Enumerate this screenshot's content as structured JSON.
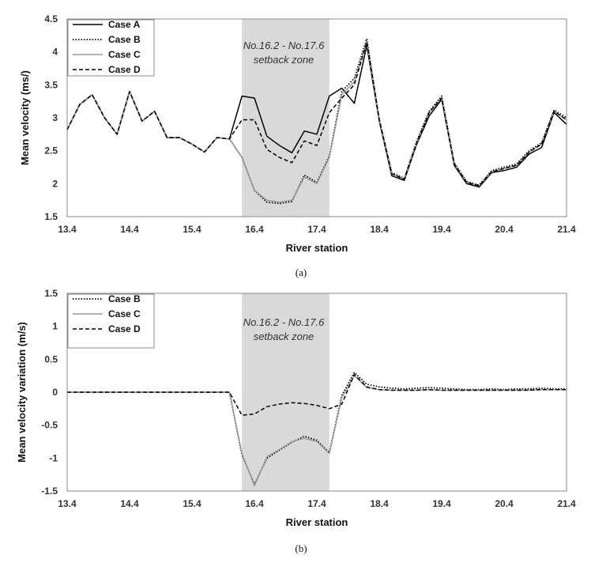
{
  "chart_data": [
    {
      "type": "line",
      "panel_label": "(a)",
      "xlabel": "River station",
      "ylabel": "Mean velocity (ms/)",
      "xlim": [
        13.4,
        21.4
      ],
      "ylim": [
        1.5,
        4.5
      ],
      "x_ticks": [
        "13.4",
        "14.4",
        "15.4",
        "16.4",
        "17.4",
        "18.4",
        "19.4",
        "20.4",
        "21.4"
      ],
      "y_ticks": [
        "1.5",
        "2",
        "2.5",
        "3",
        "3.5",
        "4",
        "4.5"
      ],
      "legend_position": "top-left",
      "shaded_region": {
        "x_start": 16.2,
        "x_end": 17.6,
        "label_line1": "No.16.2 - No.17.6",
        "label_line2": "setback zone",
        "color": "#d9d9d9"
      },
      "x": [
        13.4,
        13.6,
        13.8,
        14.0,
        14.2,
        14.4,
        14.6,
        14.8,
        15.0,
        15.2,
        15.4,
        15.6,
        15.8,
        16.0,
        16.2,
        16.4,
        16.6,
        16.8,
        17.0,
        17.2,
        17.4,
        17.6,
        17.8,
        18.0,
        18.2,
        18.4,
        18.6,
        18.8,
        19.0,
        19.2,
        19.4,
        19.6,
        19.8,
        20.0,
        20.2,
        20.4,
        20.6,
        20.8,
        21.0,
        21.2,
        21.4
      ],
      "series": [
        {
          "name": "Case A",
          "style": "solid",
          "color": "#000000",
          "values": [
            2.82,
            3.2,
            3.35,
            3.0,
            2.75,
            3.4,
            2.95,
            3.1,
            2.7,
            2.7,
            2.6,
            2.48,
            2.7,
            2.68,
            3.33,
            3.3,
            2.72,
            2.58,
            2.47,
            2.8,
            2.75,
            3.33,
            3.45,
            3.22,
            4.1,
            2.95,
            2.12,
            2.05,
            2.6,
            3.03,
            3.28,
            2.28,
            2.0,
            1.95,
            2.17,
            2.2,
            2.25,
            2.45,
            2.55,
            3.08,
            2.9
          ]
        },
        {
          "name": "Case B",
          "style": "dotted",
          "color": "#000000",
          "values": [
            2.82,
            3.2,
            3.35,
            3.0,
            2.75,
            3.4,
            2.95,
            3.1,
            2.7,
            2.7,
            2.6,
            2.48,
            2.7,
            2.68,
            2.4,
            1.9,
            1.72,
            1.7,
            1.73,
            2.13,
            2.02,
            2.42,
            3.4,
            3.6,
            4.2,
            2.98,
            2.17,
            2.08,
            2.65,
            3.1,
            3.33,
            2.32,
            2.03,
            1.98,
            2.2,
            2.25,
            2.3,
            2.5,
            2.62,
            3.12,
            3.0
          ]
        },
        {
          "name": "Case C",
          "style": "solid",
          "color": "#9a9a9a",
          "values": [
            2.82,
            3.2,
            3.35,
            3.0,
            2.75,
            3.4,
            2.95,
            3.1,
            2.7,
            2.7,
            2.6,
            2.48,
            2.7,
            2.68,
            2.4,
            1.9,
            1.75,
            1.72,
            1.75,
            2.1,
            2.0,
            2.4,
            3.35,
            3.55,
            4.15,
            2.97,
            2.15,
            2.07,
            2.62,
            3.08,
            3.3,
            2.3,
            2.02,
            1.97,
            2.18,
            2.23,
            2.28,
            2.48,
            2.6,
            3.1,
            2.97
          ]
        },
        {
          "name": "Case D",
          "style": "dashed",
          "color": "#000000",
          "values": [
            2.82,
            3.2,
            3.35,
            3.0,
            2.75,
            3.4,
            2.95,
            3.1,
            2.7,
            2.7,
            2.6,
            2.48,
            2.7,
            2.68,
            2.97,
            2.97,
            2.52,
            2.4,
            2.32,
            2.65,
            2.58,
            3.08,
            3.3,
            3.5,
            4.15,
            2.97,
            2.15,
            2.07,
            2.62,
            3.08,
            3.3,
            2.3,
            2.02,
            1.97,
            2.18,
            2.23,
            2.28,
            2.48,
            2.6,
            3.1,
            2.97
          ]
        }
      ]
    },
    {
      "type": "line",
      "panel_label": "(b)",
      "xlabel": "River station",
      "ylabel": "Mean velocity variation (m/s)",
      "xlim": [
        13.4,
        21.4
      ],
      "ylim": [
        -1.5,
        1.5
      ],
      "x_ticks": [
        "13.4",
        "14.4",
        "15.4",
        "16.4",
        "17.4",
        "18.4",
        "19.4",
        "20.4",
        "21.4"
      ],
      "y_ticks": [
        "-1.5",
        "-1",
        "-0.5",
        "0",
        "0.5",
        "1",
        "1.5"
      ],
      "legend_position": "top-left",
      "shaded_region": {
        "x_start": 16.2,
        "x_end": 17.6,
        "label_line1": "No.16.2 - No.17.6",
        "label_line2": "setback zone",
        "color": "#d9d9d9"
      },
      "x": [
        13.4,
        13.6,
        13.8,
        14.0,
        14.2,
        14.4,
        14.6,
        14.8,
        15.0,
        15.2,
        15.4,
        15.6,
        15.8,
        16.0,
        16.2,
        16.4,
        16.6,
        16.8,
        17.0,
        17.2,
        17.4,
        17.6,
        17.8,
        18.0,
        18.2,
        18.4,
        18.6,
        18.8,
        19.0,
        19.2,
        19.4,
        19.6,
        19.8,
        20.0,
        20.2,
        20.4,
        20.6,
        20.8,
        21.0,
        21.2,
        21.4
      ],
      "series": [
        {
          "name": "Case B",
          "style": "dotted",
          "color": "#000000",
          "values": [
            0,
            0,
            0,
            0,
            0,
            0,
            0,
            0,
            0,
            0,
            0,
            0,
            0,
            0,
            -0.95,
            -1.4,
            -1.0,
            -0.88,
            -0.76,
            -0.67,
            -0.73,
            -0.92,
            -0.05,
            0.3,
            0.12,
            0.08,
            0.06,
            0.05,
            0.06,
            0.07,
            0.06,
            0.05,
            0.04,
            0.04,
            0.05,
            0.04,
            0.05,
            0.05,
            0.06,
            0.05,
            0.05
          ]
        },
        {
          "name": "Case C",
          "style": "solid",
          "color": "#9a9a9a",
          "values": [
            0,
            0,
            0,
            0,
            0,
            0,
            0,
            0,
            0,
            0,
            0,
            0,
            0,
            0,
            -0.93,
            -1.42,
            -0.98,
            -0.87,
            -0.75,
            -0.7,
            -0.75,
            -0.93,
            -0.08,
            0.25,
            0.07,
            0.04,
            0.03,
            0.03,
            0.03,
            0.04,
            0.03,
            0.03,
            0.03,
            0.03,
            0.03,
            0.03,
            0.03,
            0.03,
            0.04,
            0.04,
            0.04
          ]
        },
        {
          "name": "Case D",
          "style": "dashed",
          "color": "#000000",
          "values": [
            0,
            0,
            0,
            0,
            0,
            0,
            0,
            0,
            0,
            0,
            0,
            0,
            0,
            0,
            -0.35,
            -0.33,
            -0.22,
            -0.18,
            -0.16,
            -0.17,
            -0.2,
            -0.25,
            -0.18,
            0.27,
            0.08,
            0.04,
            0.03,
            0.03,
            0.03,
            0.04,
            0.03,
            0.03,
            0.03,
            0.03,
            0.03,
            0.03,
            0.03,
            0.03,
            0.04,
            0.04,
            0.04
          ]
        }
      ]
    }
  ]
}
